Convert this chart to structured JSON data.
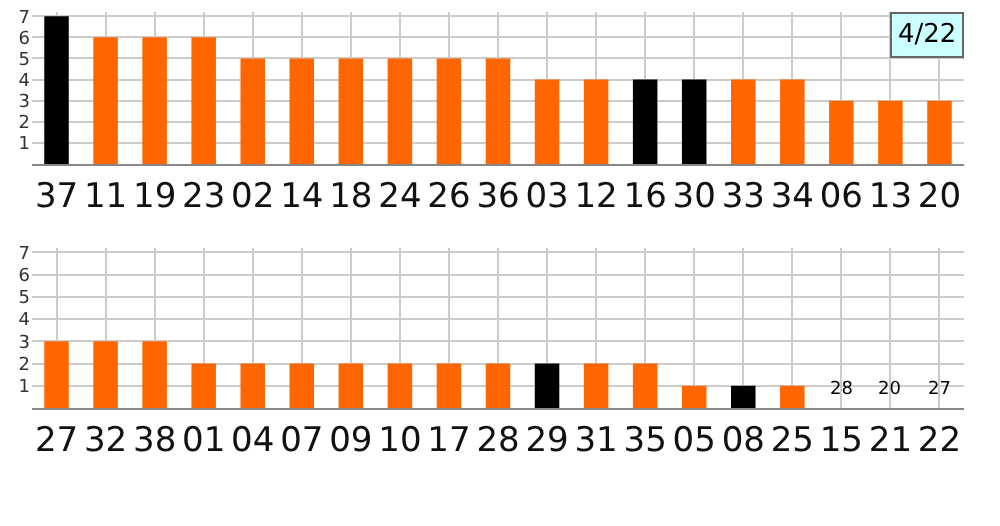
{
  "chart_data": [
    {
      "type": "bar",
      "title": "4/22",
      "categories": [
        "37",
        "11",
        "19",
        "23",
        "02",
        "14",
        "18",
        "24",
        "26",
        "36",
        "03",
        "12",
        "16",
        "30",
        "33",
        "34",
        "06",
        "13",
        "20"
      ],
      "values": [
        7,
        6,
        6,
        6,
        5,
        5,
        5,
        5,
        5,
        5,
        4,
        4,
        4,
        4,
        4,
        4,
        3,
        3,
        3
      ],
      "colors": [
        "#000000",
        "#ff6600",
        "#ff6600",
        "#ff6600",
        "#ff6600",
        "#ff6600",
        "#ff6600",
        "#ff6600",
        "#ff6600",
        "#ff6600",
        "#ff6600",
        "#ff6600",
        "#000000",
        "#000000",
        "#ff6600",
        "#ff6600",
        "#ff6600",
        "#ff6600",
        "#ff6600"
      ],
      "ylim": [
        0,
        7.2
      ],
      "yticks": [
        1,
        2,
        3,
        4,
        5,
        6,
        7
      ],
      "grid": true
    },
    {
      "type": "bar",
      "categories": [
        "27",
        "32",
        "38",
        "01",
        "04",
        "07",
        "09",
        "10",
        "17",
        "28",
        "29",
        "31",
        "35",
        "05",
        "08",
        "25",
        "15",
        "21",
        "22"
      ],
      "values": [
        3,
        3,
        3,
        2,
        2,
        2,
        2,
        2,
        2,
        2,
        2,
        2,
        2,
        1,
        1,
        1,
        0,
        0,
        0
      ],
      "colors": [
        "#ff6600",
        "#ff6600",
        "#ff6600",
        "#ff6600",
        "#ff6600",
        "#ff6600",
        "#ff6600",
        "#ff6600",
        "#ff6600",
        "#ff6600",
        "#000000",
        "#ff6600",
        "#ff6600",
        "#ff6600",
        "#000000",
        "#ff6600",
        "#ff6600",
        "#ff6600",
        "#ff6600"
      ],
      "annotations": [
        {
          "text": "28",
          "x": "15",
          "y": 0
        },
        {
          "text": "20",
          "x": "21",
          "y": 0
        },
        {
          "text": "27",
          "x": "22",
          "y": 0
        }
      ],
      "ylim": [
        0,
        7.2
      ],
      "yticks": [
        1,
        2,
        3,
        4,
        5,
        6,
        7
      ],
      "grid": true
    }
  ]
}
